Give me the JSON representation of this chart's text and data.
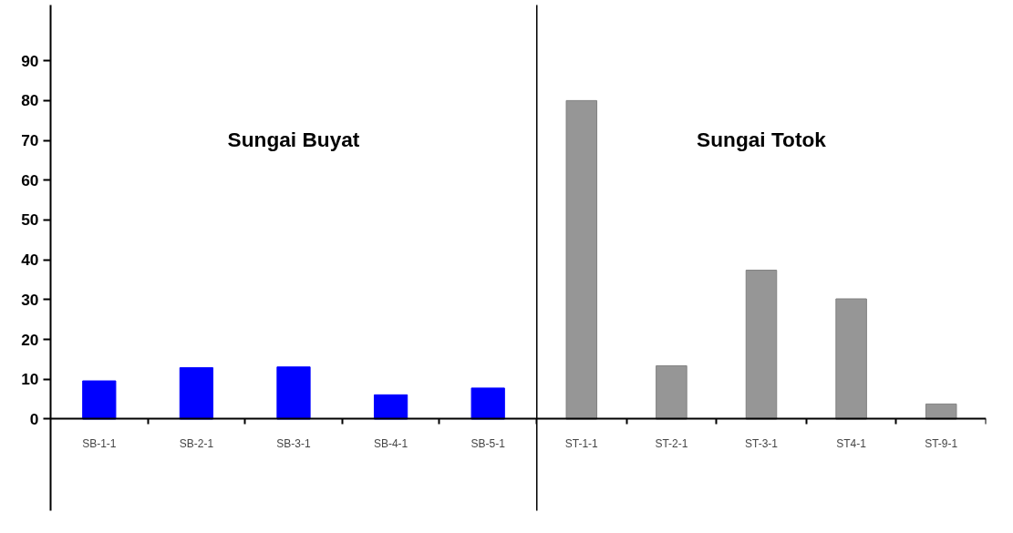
{
  "chart_data": [
    {
      "type": "bar",
      "title": "Sungai Buyat",
      "categories": [
        "SB-1-1",
        "SB-2-1",
        "SB-3-1",
        "SB-4-1",
        "SB-5-1"
      ],
      "values": [
        9.6,
        12.9,
        13.1,
        6.1,
        7.8
      ],
      "color": "#0000ff",
      "ylim": [
        -23,
        104
      ],
      "yticks": [
        0,
        10,
        20,
        30,
        40,
        50,
        60,
        70,
        80,
        90
      ],
      "grid": false
    },
    {
      "type": "bar",
      "title": "Sungai Totok",
      "categories": [
        "ST-1-1",
        "ST-2-1",
        "ST-3-1",
        "ST4-1",
        "ST-9-1"
      ],
      "values": [
        80,
        13.4,
        37.4,
        30.2,
        3.8
      ],
      "color": "#969696",
      "ylim": [
        -23,
        104
      ],
      "tick_labels": "x",
      "grid": false
    }
  ]
}
